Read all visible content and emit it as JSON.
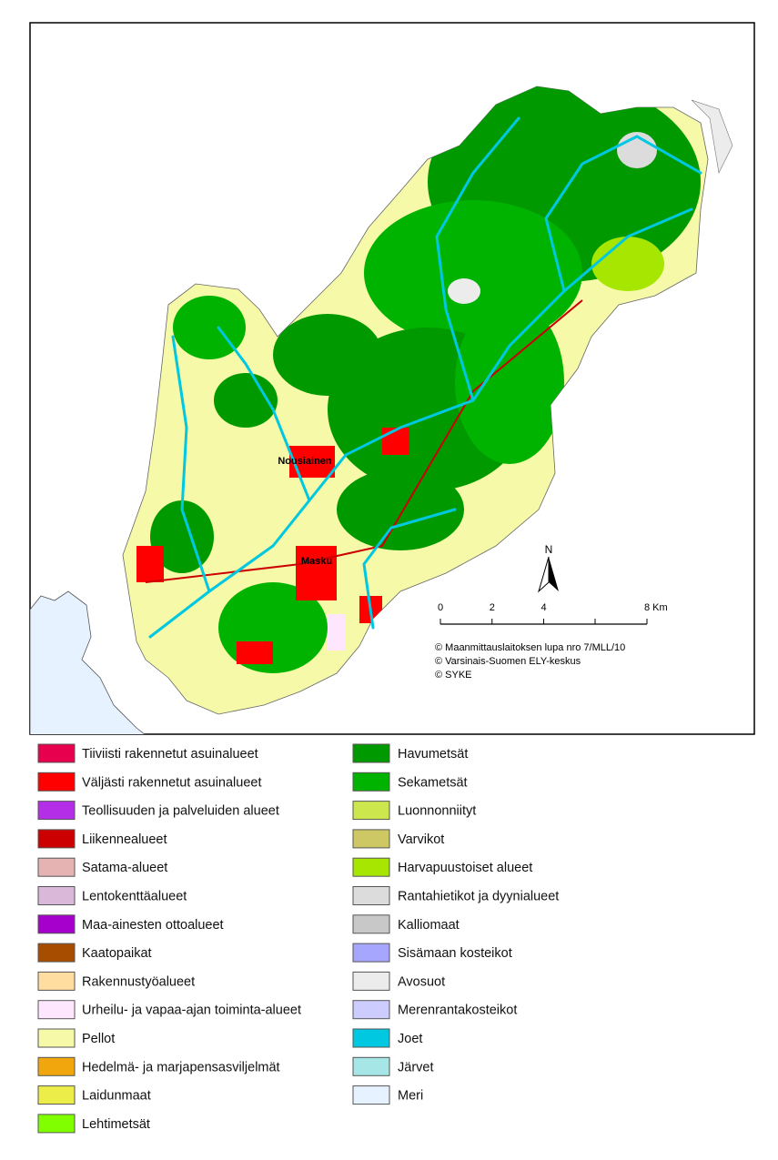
{
  "map": {
    "places": [
      "Nousiainen",
      "Masku"
    ],
    "north_arrow": "N",
    "scale_bar": {
      "ticks": [
        0,
        2,
        4,
        {
          "value": 8,
          "label": "8 Km"
        }
      ]
    },
    "credits": [
      "© Maanmittauslaitoksen lupa nro 7/MLL/10",
      "© Varsinais-Suomen ELY-keskus",
      "© SYKE"
    ]
  },
  "legend": {
    "left": [
      {
        "name": "Tiiviisti rakennetut asuinalueet",
        "color": "#e6004d"
      },
      {
        "name": "Väljästi rakennetut asuinalueet",
        "color": "#ff0000"
      },
      {
        "name": "Teollisuuden ja palveluiden alueet",
        "color": "#b32ee6"
      },
      {
        "name": "Liikennealueet",
        "color": "#cc0000"
      },
      {
        "name": "Satama-alueet",
        "color": "#e6b3b3"
      },
      {
        "name": "Lentokenttäalueet",
        "color": "#d9b8d9"
      },
      {
        "name": "Maa-ainesten ottoalueet",
        "color": "#a600cc"
      },
      {
        "name": "Kaatopaikat",
        "color": "#a64d00"
      },
      {
        "name": "Rakennustyöalueet",
        "color": "#ffdca0"
      },
      {
        "name": "Urheilu- ja vapaa-ajan toiminta-alueet",
        "color": "#ffe6ff"
      },
      {
        "name": "Pellot",
        "color": "#f5f9a8"
      },
      {
        "name": "Hedelmä- ja marjapensasviljelmät",
        "color": "#f2a60d"
      },
      {
        "name": "Laidunmaat",
        "color": "#eded4a"
      },
      {
        "name": "Lehtimetsät",
        "color": "#80ff00"
      }
    ],
    "right": [
      {
        "name": "Havumetsät",
        "color": "#009900"
      },
      {
        "name": "Sekametsät",
        "color": "#00b300"
      },
      {
        "name": "Luonnonniityt",
        "color": "#cce64d"
      },
      {
        "name": "Varvikot",
        "color": "#cdc864"
      },
      {
        "name": "Harvapuustoiset alueet",
        "color": "#a6e600"
      },
      {
        "name": "Rantahietikot ja dyynialueet",
        "color": "#dcdcdc"
      },
      {
        "name": "Kalliomaat",
        "color": "#c8c8c8"
      },
      {
        "name": "Sisämaan kosteikot",
        "color": "#a6a6ff"
      },
      {
        "name": "Avosuot",
        "color": "#ececec"
      },
      {
        "name": "Merenrantakosteikot",
        "color": "#ccccff"
      },
      {
        "name": "Joet",
        "color": "#00c8e0"
      },
      {
        "name": "Järvet",
        "color": "#a6e6e6"
      },
      {
        "name": "Meri",
        "color": "#e6f2ff"
      }
    ]
  }
}
